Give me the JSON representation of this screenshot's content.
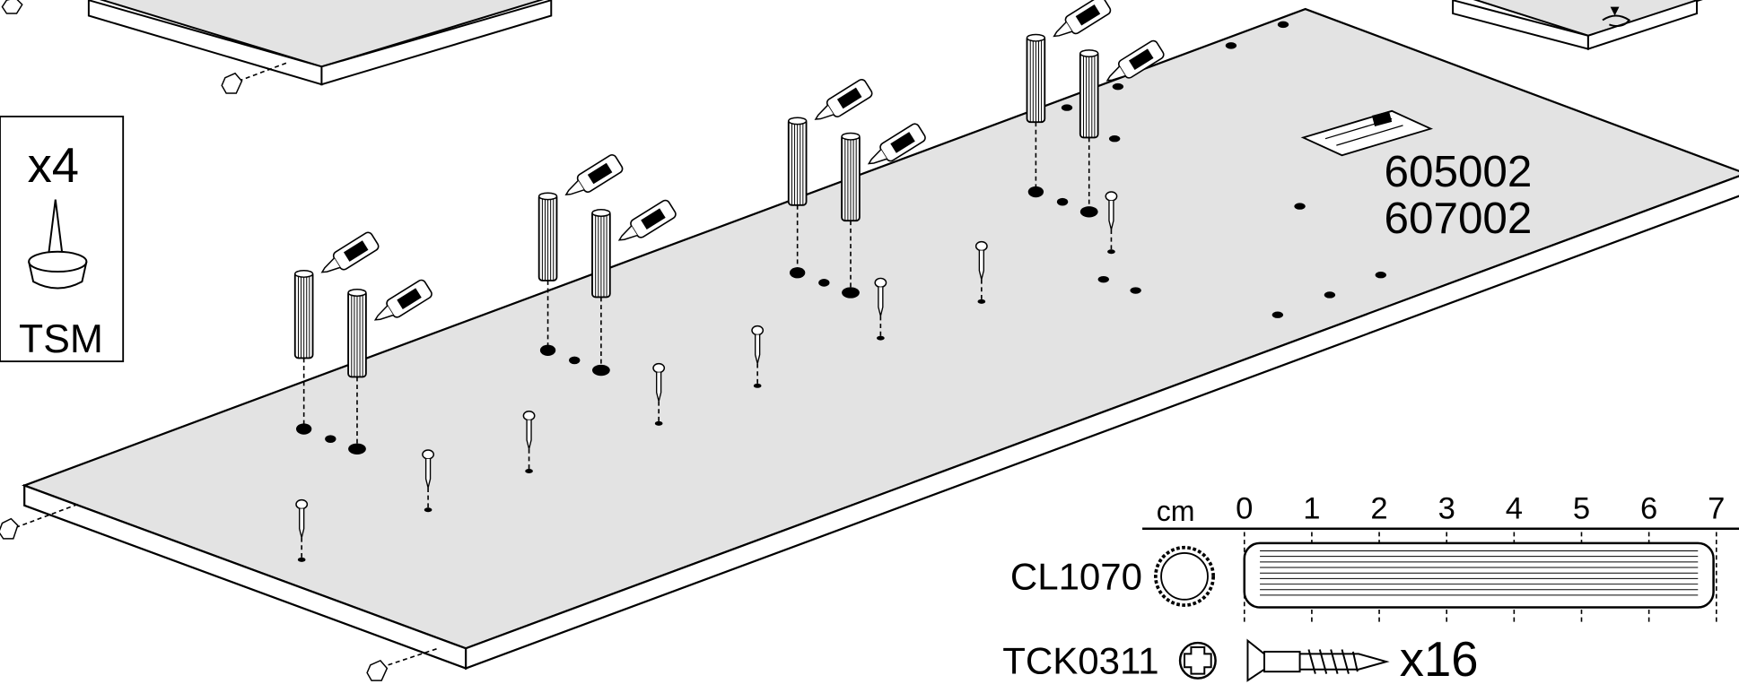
{
  "felt_box": {
    "quantity": "x4",
    "code": "TSM"
  },
  "panel_codes": [
    "605002",
    "607002"
  ],
  "ruler": {
    "unit": "cm",
    "labels": [
      0,
      1,
      2,
      3,
      4,
      5,
      6,
      7
    ]
  },
  "parts": [
    {
      "code": "CL1070"
    },
    {
      "code": "TCK0311",
      "quantity": "x16"
    }
  ]
}
